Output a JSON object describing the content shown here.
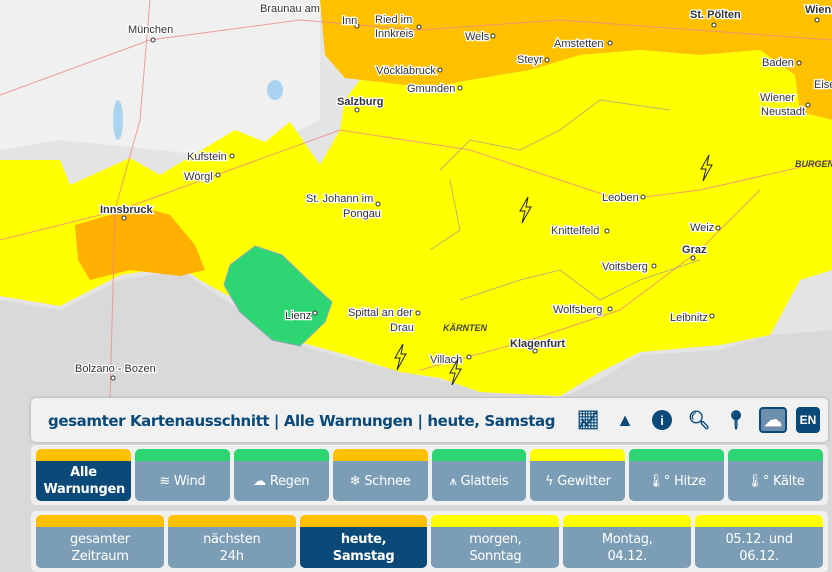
{
  "colors": {
    "orange": "#ffc000",
    "yellow": "#ffff00",
    "green": "#2ed573",
    "active": "#0b4a78",
    "inactive": "#7b9db5"
  },
  "map": {
    "cities": [
      {
        "name": "München",
        "bold": false
      },
      {
        "name": "Braunau am",
        "bold": false
      },
      {
        "name": "Inn",
        "bold": false
      },
      {
        "name": "Ried im",
        "bold": false
      },
      {
        "name": "Innkreis",
        "bold": false
      },
      {
        "name": "Wels",
        "bold": false
      },
      {
        "name": "Steyr",
        "bold": false
      },
      {
        "name": "Amstetten",
        "bold": false
      },
      {
        "name": "St. Pölten",
        "bold": true
      },
      {
        "name": "Wien",
        "bold": true
      },
      {
        "name": "Baden",
        "bold": false
      },
      {
        "name": "Vöcklabruck",
        "bold": false
      },
      {
        "name": "Gmunden",
        "bold": false
      },
      {
        "name": "Salzburg",
        "bold": true
      },
      {
        "name": "Wiener",
        "bold": false
      },
      {
        "name": "Neustadt",
        "bold": false
      },
      {
        "name": "Eise",
        "bold": false
      },
      {
        "name": "Kufstein",
        "bold": false
      },
      {
        "name": "Wörgl",
        "bold": false
      },
      {
        "name": "Innsbruck",
        "bold": true
      },
      {
        "name": "St. Johann im",
        "bold": false
      },
      {
        "name": "Pongau",
        "bold": false
      },
      {
        "name": "Leoben",
        "bold": false
      },
      {
        "name": "Knittelfeld",
        "bold": false
      },
      {
        "name": "Weiz",
        "bold": false
      },
      {
        "name": "Graz",
        "bold": true
      },
      {
        "name": "Voitsberg",
        "bold": false
      },
      {
        "name": "Lienz",
        "bold": false
      },
      {
        "name": "Spittal an der",
        "bold": false
      },
      {
        "name": "Drau",
        "bold": false
      },
      {
        "name": "Wolfsberg",
        "bold": false
      },
      {
        "name": "Leibnitz",
        "bold": false
      },
      {
        "name": "Klagenfurt",
        "bold": true
      },
      {
        "name": "Villach",
        "bold": false
      },
      {
        "name": "Bolzano - Bozen",
        "bold": false
      }
    ],
    "regions": [
      "KÄRNTEN",
      "BURGEN"
    ],
    "lightning_icons": 4
  },
  "header": {
    "title": "gesamter Kartenausschnitt | Alle Warnungen | heute, Samstag",
    "icons": [
      "chart-icon",
      "warning-icon",
      "info-icon",
      "zoom-icon",
      "location-pin-icon",
      "cloud-icon"
    ],
    "lang": "EN"
  },
  "types": [
    {
      "label": "Alle Warnungen",
      "icon": "",
      "level": "orange",
      "active": true
    },
    {
      "label": "Wind",
      "icon": "≋",
      "level": "green"
    },
    {
      "label": "Regen",
      "icon": "☁",
      "level": "green"
    },
    {
      "label": "Schnee",
      "icon": "❄",
      "level": "orange"
    },
    {
      "label": "Glatteis",
      "icon": "⩚",
      "level": "green"
    },
    {
      "label": "Gewitter",
      "icon": "ϟ",
      "level": "yellow"
    },
    {
      "label": "Hitze",
      "icon": "🌡°",
      "level": "green"
    },
    {
      "label": "Kälte",
      "icon": "🌡°",
      "level": "green"
    }
  ],
  "times": [
    {
      "label": "gesamter Zeitraum",
      "level": "orange"
    },
    {
      "label": "nächsten 24h",
      "level": "orange"
    },
    {
      "label": "heute, Samstag",
      "level": "orange",
      "active": true
    },
    {
      "label": "morgen, Sonntag",
      "level": "yellow"
    },
    {
      "label": "Montag, 04.12.",
      "level": "yellow"
    },
    {
      "label": "05.12. und 06.12.",
      "level": "yellow"
    }
  ]
}
